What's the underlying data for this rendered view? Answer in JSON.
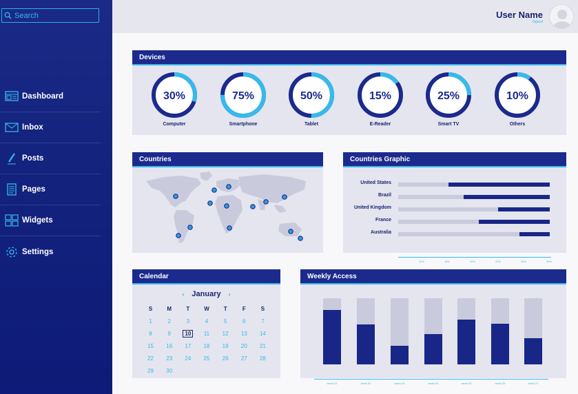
{
  "sidebar": {
    "search_placeholder": "Search",
    "items": [
      {
        "label": "Dashboard",
        "icon": "dashboard-icon"
      },
      {
        "label": "Inbox",
        "icon": "mail-icon"
      },
      {
        "label": "Posts",
        "icon": "pencil-icon"
      },
      {
        "label": "Pages",
        "icon": "page-icon"
      },
      {
        "label": "Widgets",
        "icon": "widgets-icon"
      },
      {
        "label": "Settings",
        "icon": "gear-icon"
      }
    ]
  },
  "header": {
    "user_name": "User Name",
    "user_sub": "Signed"
  },
  "devices": {
    "title": "Devices",
    "items": [
      {
        "label": "Computer",
        "value": "30%",
        "pct": 30
      },
      {
        "label": "Smartphone",
        "value": "75%",
        "pct": 75
      },
      {
        "label": "Tablet",
        "value": "50%",
        "pct": 50
      },
      {
        "label": "E-Reader",
        "value": "15%",
        "pct": 15
      },
      {
        "label": "Smart TV",
        "value": "25%",
        "pct": 25
      },
      {
        "label": "Others",
        "value": "10%",
        "pct": 10
      }
    ]
  },
  "countries": {
    "title": "Countries"
  },
  "countries_graphic": {
    "title": "Countries Graphic",
    "bars": [
      {
        "label": "United States",
        "pct": 67
      },
      {
        "label": "Brazil",
        "pct": 57
      },
      {
        "label": "United Kingdom",
        "pct": 34
      },
      {
        "label": "France",
        "pct": 47
      },
      {
        "label": "Australia",
        "pct": 20
      }
    ],
    "ticks": [
      "10%",
      "15%",
      "20%",
      "25%",
      "30%",
      "35%"
    ]
  },
  "calendar": {
    "title": "Calendar",
    "month": "January",
    "prev": "‹",
    "next": "›",
    "weekdays": [
      "S",
      "M",
      "T",
      "W",
      "T",
      "F",
      "S"
    ],
    "weeks": [
      [
        "1",
        "2",
        "3",
        "4",
        "5",
        "6",
        "7"
      ],
      [
        "8",
        "9",
        "10",
        "11",
        "12",
        "13",
        "14"
      ],
      [
        "15",
        "16",
        "17",
        "18",
        "19",
        "20",
        "21"
      ],
      [
        "22",
        "23",
        "24",
        "25",
        "26",
        "27",
        "28"
      ],
      [
        "29",
        "30",
        "",
        "",
        "",
        "",
        ""
      ]
    ],
    "today": "10"
  },
  "weekly": {
    "title": "Weekly Access",
    "bars": [
      {
        "label": "week 01",
        "pct": 82
      },
      {
        "label": "week 02",
        "pct": 60
      },
      {
        "label": "week 03",
        "pct": 28
      },
      {
        "label": "week 04",
        "pct": 46
      },
      {
        "label": "week 05",
        "pct": 68
      },
      {
        "label": "week 06",
        "pct": 61
      },
      {
        "label": "week 07",
        "pct": 40
      }
    ]
  },
  "colors": {
    "navy": "#1b2a8c",
    "cyan": "#37b9ec",
    "track": "#c9cbdc"
  }
}
